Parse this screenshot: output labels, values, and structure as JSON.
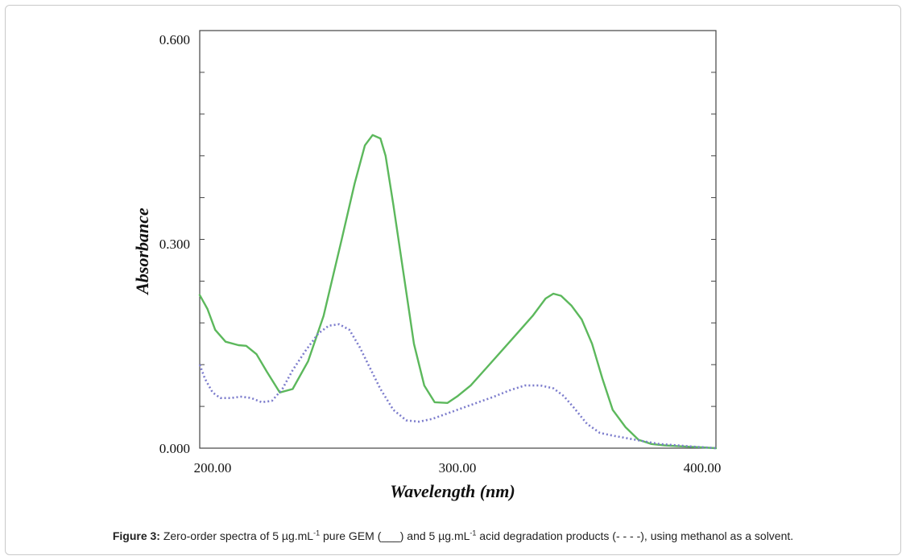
{
  "caption": {
    "label": "Figure 3:",
    "p1": "Zero-order spectra of 5 µg.mL",
    "sup1": "-1",
    "p2": "  pure GEM (___) and 5 µg.mL",
    "sup2": "-1",
    "p3": " acid degradation products (- - - -), using methanol as a solvent."
  },
  "chart_data": {
    "type": "line",
    "xlabel": "Wavelength (nm)",
    "ylabel": "Absorbance",
    "xlim": [
      200,
      400
    ],
    "ylim": [
      0,
      0.6
    ],
    "x_ticks": [
      200,
      300,
      400
    ],
    "x_tick_labels": [
      "200.00",
      "300.00",
      "400.00"
    ],
    "y_ticks": [
      0,
      0.3,
      0.6
    ],
    "y_tick_labels": [
      "0.000",
      "0.300",
      "0.600"
    ],
    "grid": false,
    "series": [
      {
        "style": "solid",
        "color": "#5cb85c",
        "x": [
          200,
          203,
          206,
          210,
          215,
          218,
          222,
          226,
          231,
          236,
          242,
          248,
          255,
          260,
          264,
          267,
          270,
          272,
          275,
          279,
          283,
          287,
          291,
          296,
          300,
          305,
          311,
          317,
          323,
          329,
          334,
          337,
          340,
          344,
          348,
          352,
          356,
          360,
          365,
          370,
          375,
          380,
          385,
          390,
          395,
          400
        ],
        "values": [
          0.22,
          0.2,
          0.17,
          0.153,
          0.148,
          0.147,
          0.135,
          0.11,
          0.08,
          0.085,
          0.125,
          0.19,
          0.3,
          0.38,
          0.435,
          0.45,
          0.445,
          0.42,
          0.35,
          0.25,
          0.15,
          0.09,
          0.066,
          0.065,
          0.075,
          0.09,
          0.115,
          0.14,
          0.165,
          0.19,
          0.215,
          0.222,
          0.219,
          0.205,
          0.185,
          0.15,
          0.1,
          0.055,
          0.03,
          0.012,
          0.006,
          0.004,
          0.003,
          0.002,
          0.001,
          0
        ]
      },
      {
        "style": "dashed",
        "color": "#7c7ccc",
        "x": [
          200,
          202,
          205,
          208,
          212,
          216,
          220,
          224,
          228,
          232,
          236,
          241,
          246,
          250,
          254,
          258,
          262,
          266,
          270,
          275,
          280,
          285,
          290,
          296,
          302,
          308,
          314,
          320,
          326,
          332,
          337,
          341,
          345,
          350,
          355,
          360,
          366,
          372,
          378,
          385,
          392,
          400
        ],
        "values": [
          0.12,
          0.1,
          0.08,
          0.072,
          0.072,
          0.074,
          0.072,
          0.066,
          0.068,
          0.085,
          0.112,
          0.14,
          0.165,
          0.176,
          0.178,
          0.17,
          0.145,
          0.115,
          0.085,
          0.055,
          0.04,
          0.038,
          0.042,
          0.05,
          0.058,
          0.066,
          0.074,
          0.083,
          0.09,
          0.09,
          0.086,
          0.075,
          0.058,
          0.035,
          0.022,
          0.018,
          0.014,
          0.01,
          0.006,
          0.004,
          0.002,
          0
        ]
      }
    ]
  }
}
